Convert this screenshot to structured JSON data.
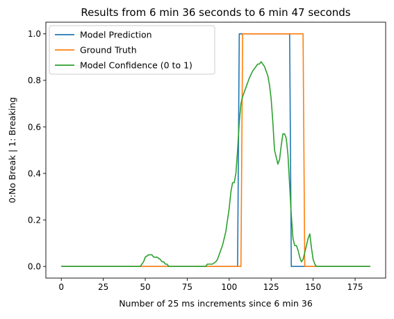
{
  "chart_data": {
    "type": "line",
    "title": "Results from 6 min 36 seconds to 6 min 47 seconds",
    "xlabel": "Number of 25 ms increments since 6 min 36",
    "ylabel": "0:No Break | 1: Breaking",
    "xlim": [
      -9.2,
      193.2
    ],
    "ylim": [
      -0.05,
      1.05
    ],
    "xticks": [
      0,
      25,
      50,
      75,
      100,
      125,
      150,
      175
    ],
    "yticks": [
      0.0,
      0.2,
      0.4,
      0.6,
      0.8,
      1.0
    ],
    "xtick_labels": [
      "0",
      "25",
      "50",
      "75",
      "100",
      "125",
      "150",
      "175"
    ],
    "ytick_labels": [
      "0.0",
      "0.2",
      "0.4",
      "0.6",
      "0.8",
      "1.0"
    ],
    "grid": false,
    "legend_position": "top-left",
    "series": [
      {
        "name": "Model Prediction",
        "color": "#1f77b4",
        "x": [
          0,
          105,
          106,
          136,
          137,
          184
        ],
        "y": [
          0,
          0,
          1,
          1,
          0,
          0
        ]
      },
      {
        "name": "Ground Truth",
        "color": "#ff7f0e",
        "x": [
          0,
          107,
          108,
          144,
          145,
          184
        ],
        "y": [
          0,
          0,
          1,
          1,
          0,
          0
        ]
      },
      {
        "name": "Model Confidence (0 to 1)",
        "color": "#2ca02c",
        "x": [
          0,
          47,
          49,
          50,
          52,
          54,
          55,
          57,
          59,
          60,
          61,
          62,
          63,
          64,
          65,
          86,
          87,
          88,
          90,
          92,
          93,
          94,
          96,
          98,
          100,
          101,
          102,
          103,
          104,
          105,
          106,
          107,
          108,
          109,
          110,
          111,
          112,
          114,
          116,
          117,
          118,
          119,
          120,
          121,
          122,
          123,
          124,
          125,
          126,
          127,
          128,
          129,
          130,
          131,
          132,
          133,
          134,
          135,
          136,
          137,
          138,
          139,
          140,
          141,
          142,
          143,
          144,
          145,
          146,
          147,
          148,
          149,
          150,
          151,
          152,
          153,
          154,
          184
        ],
        "y": [
          0,
          0,
          0.02,
          0.04,
          0.05,
          0.05,
          0.04,
          0.04,
          0.03,
          0.02,
          0.02,
          0.01,
          0.01,
          0,
          0,
          0,
          0.01,
          0.01,
          0.01,
          0.02,
          0.03,
          0.05,
          0.09,
          0.15,
          0.25,
          0.32,
          0.36,
          0.36,
          0.4,
          0.5,
          0.62,
          0.7,
          0.73,
          0.75,
          0.77,
          0.79,
          0.81,
          0.84,
          0.86,
          0.87,
          0.87,
          0.88,
          0.87,
          0.86,
          0.84,
          0.82,
          0.78,
          0.72,
          0.62,
          0.5,
          0.47,
          0.44,
          0.46,
          0.52,
          0.57,
          0.57,
          0.55,
          0.48,
          0.35,
          0.22,
          0.12,
          0.09,
          0.09,
          0.07,
          0.04,
          0.02,
          0.03,
          0.06,
          0.09,
          0.12,
          0.14,
          0.08,
          0.03,
          0.01,
          0,
          0,
          0,
          0
        ]
      }
    ]
  }
}
